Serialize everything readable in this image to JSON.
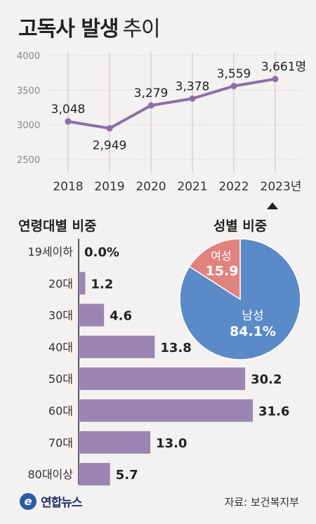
{
  "title": "고독사 발생",
  "subtitle": "추이",
  "chart_data": [
    {
      "type": "line",
      "x": [
        "2018",
        "2019",
        "2020",
        "2021",
        "2022",
        "2023년"
      ],
      "values": [
        3048,
        2949,
        3279,
        3378,
        3559,
        3661
      ],
      "value_labels": [
        "3,048",
        "2,949",
        "3,279",
        "3,378",
        "3,559",
        "3,661명"
      ],
      "yticks": [
        "4000",
        "3500",
        "3000",
        "2500"
      ],
      "ylim": [
        2500,
        4000
      ],
      "color": "#8a6fa8",
      "grid": "vertical"
    },
    {
      "type": "bar",
      "orientation": "horizontal",
      "title": "연령대별 비중",
      "categories": [
        "19세이하",
        "20대",
        "30대",
        "40대",
        "50대",
        "60대",
        "70대",
        "80대이상"
      ],
      "values": [
        0.0,
        1.2,
        4.6,
        13.8,
        30.2,
        31.6,
        13.0,
        5.7
      ],
      "value_labels": [
        "0.0%",
        "1.2",
        "4.6",
        "13.8",
        "30.2",
        "31.6",
        "13.0",
        "5.7"
      ],
      "color": "#9b85b2"
    },
    {
      "type": "pie",
      "title": "성별 비중",
      "slices": [
        {
          "name": "남성",
          "value": 84.1,
          "value_label": "84.1%",
          "color": "#5b8ac8"
        },
        {
          "name": "여성",
          "value": 15.9,
          "value_label": "15.9",
          "color": "#e0837e"
        }
      ]
    }
  ],
  "footer": {
    "logo_mark": "e",
    "logo": "연합뉴스",
    "source": "자료: 보건복지부"
  }
}
